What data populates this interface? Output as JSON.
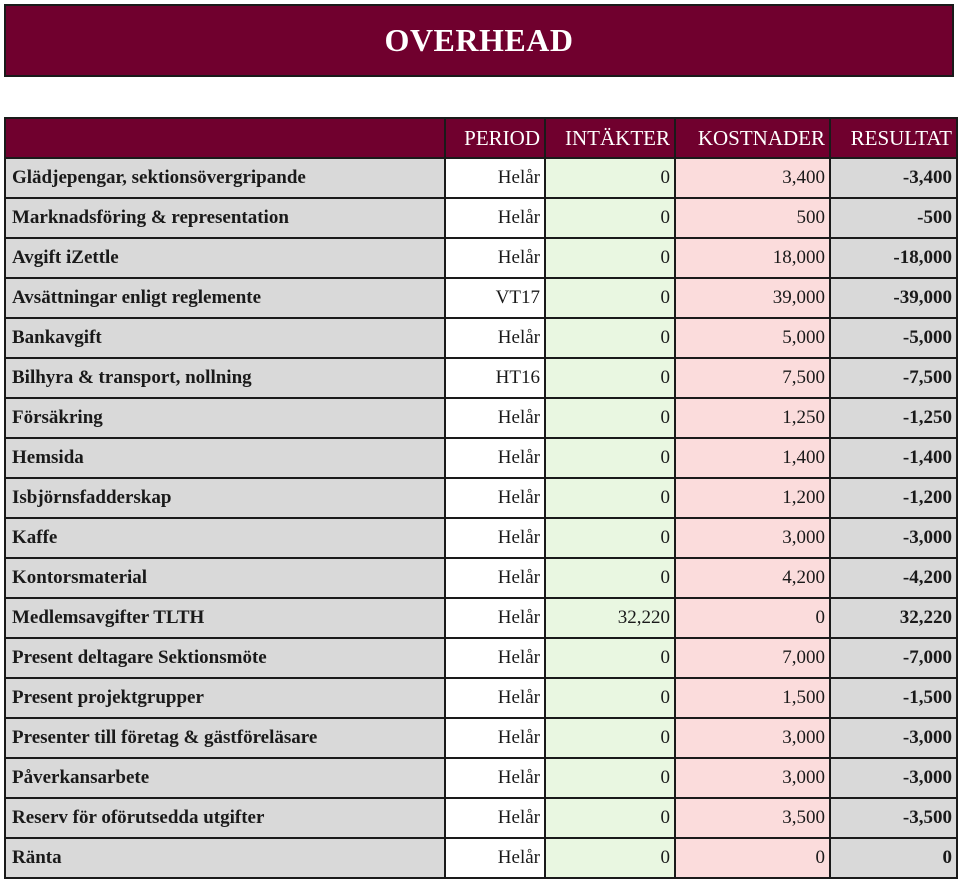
{
  "title": "OVERHEAD",
  "colors": {
    "header_bg": "#70002e",
    "label_bg": "#d9d9d9",
    "income_bg": "#e9f7e1",
    "cost_bg": "#fbdcdc"
  },
  "columns": {
    "period": "PERIOD",
    "income": "INTÄKTER",
    "costs": "KOSTNADER",
    "result": "RESULTAT"
  },
  "rows": [
    {
      "name": "Glädjepengar, sektionsövergripande",
      "period": "Helår",
      "income": "0",
      "costs": "3,400",
      "result": "-3,400"
    },
    {
      "name": "Marknadsföring & representation",
      "period": "Helår",
      "income": "0",
      "costs": "500",
      "result": "-500"
    },
    {
      "name": "Avgift iZettle",
      "period": "Helår",
      "income": "0",
      "costs": "18,000",
      "result": "-18,000"
    },
    {
      "name": "Avsättningar enligt reglemente",
      "period": "VT17",
      "income": "0",
      "costs": "39,000",
      "result": "-39,000"
    },
    {
      "name": "Bankavgift",
      "period": "Helår",
      "income": "0",
      "costs": "5,000",
      "result": "-5,000"
    },
    {
      "name": "Bilhyra & transport, nollning",
      "period": "HT16",
      "income": "0",
      "costs": "7,500",
      "result": "-7,500"
    },
    {
      "name": "Försäkring",
      "period": "Helår",
      "income": "0",
      "costs": "1,250",
      "result": "-1,250"
    },
    {
      "name": "Hemsida",
      "period": "Helår",
      "income": "0",
      "costs": "1,400",
      "result": "-1,400"
    },
    {
      "name": "Isbjörnsfadderskap",
      "period": "Helår",
      "income": "0",
      "costs": "1,200",
      "result": "-1,200"
    },
    {
      "name": "Kaffe",
      "period": "Helår",
      "income": "0",
      "costs": "3,000",
      "result": "-3,000"
    },
    {
      "name": "Kontorsmaterial",
      "period": "Helår",
      "income": "0",
      "costs": "4,200",
      "result": "-4,200"
    },
    {
      "name": "Medlemsavgifter TLTH",
      "period": "Helår",
      "income": "32,220",
      "costs": "0",
      "result": "32,220"
    },
    {
      "name": "Present deltagare Sektionsmöte",
      "period": "Helår",
      "income": "0",
      "costs": "7,000",
      "result": "-7,000"
    },
    {
      "name": "Present projektgrupper",
      "period": "Helår",
      "income": "0",
      "costs": "1,500",
      "result": "-1,500"
    },
    {
      "name": "Presenter till företag & gästföreläsare",
      "period": "Helår",
      "income": "0",
      "costs": "3,000",
      "result": "-3,000"
    },
    {
      "name": "Påverkansarbete",
      "period": "Helår",
      "income": "0",
      "costs": "3,000",
      "result": "-3,000"
    },
    {
      "name": "Reserv för oförutsedda utgifter",
      "period": "Helår",
      "income": "0",
      "costs": "3,500",
      "result": "-3,500"
    },
    {
      "name": "Ränta",
      "period": "Helår",
      "income": "0",
      "costs": "0",
      "result": "0"
    }
  ]
}
